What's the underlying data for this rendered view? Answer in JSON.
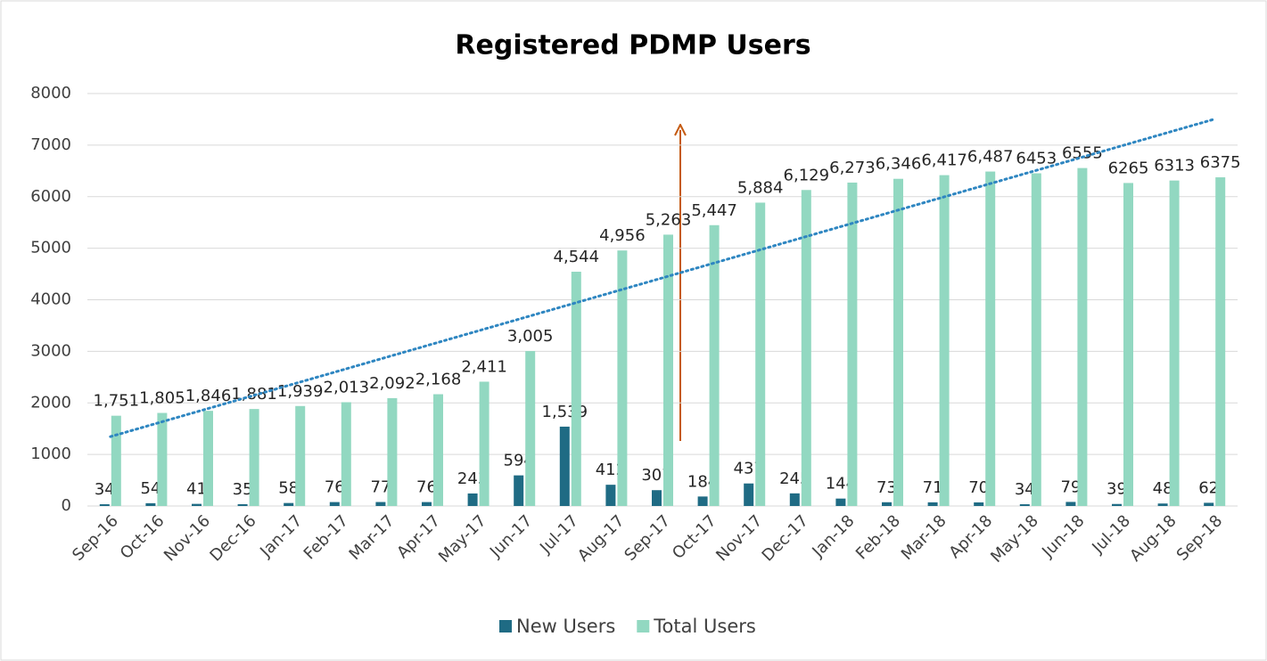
{
  "chart_data": {
    "type": "bar",
    "title": "Registered PDMP Users",
    "categories": [
      "Sep-16",
      "Oct-16",
      "Nov-16",
      "Dec-16",
      "Jan-17",
      "Feb-17",
      "Mar-17",
      "Apr-17",
      "May-17",
      "Jun-17",
      "Jul-17",
      "Aug-17",
      "Sep-17",
      "Oct-17",
      "Nov-17",
      "Dec-17",
      "Jan-18",
      "Feb-18",
      "Mar-18",
      "Apr-18",
      "May-18",
      "Jun-18",
      "Jul-18",
      "Aug-18",
      "Sep-18"
    ],
    "series": [
      {
        "name": "New Users",
        "color": "#1f6b84",
        "values": [
          34,
          54,
          41,
          35,
          58,
          76,
          77,
          76,
          243,
          594,
          1539,
          412,
          307,
          184,
          437,
          245,
          144,
          73,
          71,
          70,
          34,
          79,
          39,
          48,
          62
        ],
        "value_labels": [
          "34",
          "54",
          "41",
          "35",
          "58",
          "76",
          "77",
          "76",
          "243",
          "594",
          "1,539",
          "412",
          "307",
          "184",
          "437",
          "245",
          "144",
          "73",
          "71",
          "70",
          "34",
          "79",
          "39",
          "48",
          "62"
        ]
      },
      {
        "name": "Total Users",
        "color": "#92d8c1",
        "values": [
          1751,
          1805,
          1846,
          1881,
          1939,
          2013,
          2092,
          2168,
          2411,
          3005,
          4544,
          4956,
          5263,
          5447,
          5884,
          6129,
          6273,
          6346,
          6417,
          6487,
          6453,
          6555,
          6265,
          6313,
          6375
        ],
        "value_labels": [
          "1,751",
          "1,805",
          "1,846",
          "1,881",
          "1,939",
          "2,013",
          "2,092",
          "2,168",
          "2,411",
          "3,005",
          "4,544",
          "4,956",
          "5,263",
          "5,447",
          "5,884",
          "6,129",
          "6,273",
          "6,346",
          "6,417",
          "6,487",
          "6453",
          "6555",
          "6265",
          "6313",
          "6375"
        ]
      }
    ],
    "ylim": [
      0,
      8000
    ],
    "yticks": [
      0,
      1000,
      2000,
      3000,
      4000,
      5000,
      6000,
      7000,
      8000
    ],
    "grid": true,
    "legend": "bottom"
  }
}
